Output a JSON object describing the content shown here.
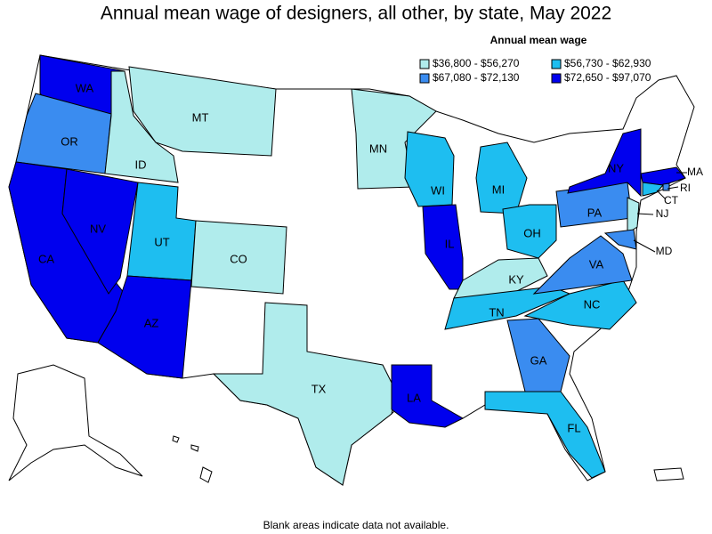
{
  "title": "Annual mean wage of designers, all other, by state, May 2022",
  "legend": {
    "title": "Annual mean wage",
    "entries": [
      {
        "label": "$36,800 - $56,270",
        "color": "#b0ecec"
      },
      {
        "label": "$56,730 - $62,930",
        "color": "#1ebef0"
      },
      {
        "label": "$67,080 - $72,130",
        "color": "#3a8cf0"
      },
      {
        "label": "$72,650 - $97,070",
        "color": "#0000ee"
      }
    ]
  },
  "states": [
    {
      "label": "WA",
      "color": "#0000ee"
    },
    {
      "label": "OR",
      "color": "#3a8cf0"
    },
    {
      "label": "ID",
      "color": "#b0ecec"
    },
    {
      "label": "MT",
      "color": "#b0ecec"
    },
    {
      "label": "CA",
      "color": "#0000ee"
    },
    {
      "label": "NV",
      "color": "#0000ee"
    },
    {
      "label": "UT",
      "color": "#1ebef0"
    },
    {
      "label": "AZ",
      "color": "#0000ee"
    },
    {
      "label": "CO",
      "color": "#b0ecec"
    },
    {
      "label": "TX",
      "color": "#b0ecec"
    },
    {
      "label": "MN",
      "color": "#b0ecec"
    },
    {
      "label": "WI",
      "color": "#1ebef0"
    },
    {
      "label": "MI",
      "color": "#1ebef0"
    },
    {
      "label": "IL",
      "color": "#0000ee"
    },
    {
      "label": "OH",
      "color": "#1ebef0"
    },
    {
      "label": "KY",
      "color": "#b0ecec"
    },
    {
      "label": "TN",
      "color": "#1ebef0"
    },
    {
      "label": "NC",
      "color": "#1ebef0"
    },
    {
      "label": "VA",
      "color": "#3a8cf0"
    },
    {
      "label": "GA",
      "color": "#3a8cf0"
    },
    {
      "label": "FL",
      "color": "#1ebef0"
    },
    {
      "label": "LA",
      "color": "#0000ee"
    },
    {
      "label": "PA",
      "color": "#3a8cf0"
    },
    {
      "label": "NY",
      "color": "#0000ee"
    },
    {
      "label": "MA",
      "color": "#0000ee"
    },
    {
      "label": "CT",
      "color": "#1ebef0"
    },
    {
      "label": "RI",
      "color": "#3a8cf0"
    },
    {
      "label": "NJ",
      "color": "#b0ecec"
    },
    {
      "label": "MD",
      "color": "#3a8cf0"
    }
  ],
  "footnote": "Blank areas indicate data not available."
}
